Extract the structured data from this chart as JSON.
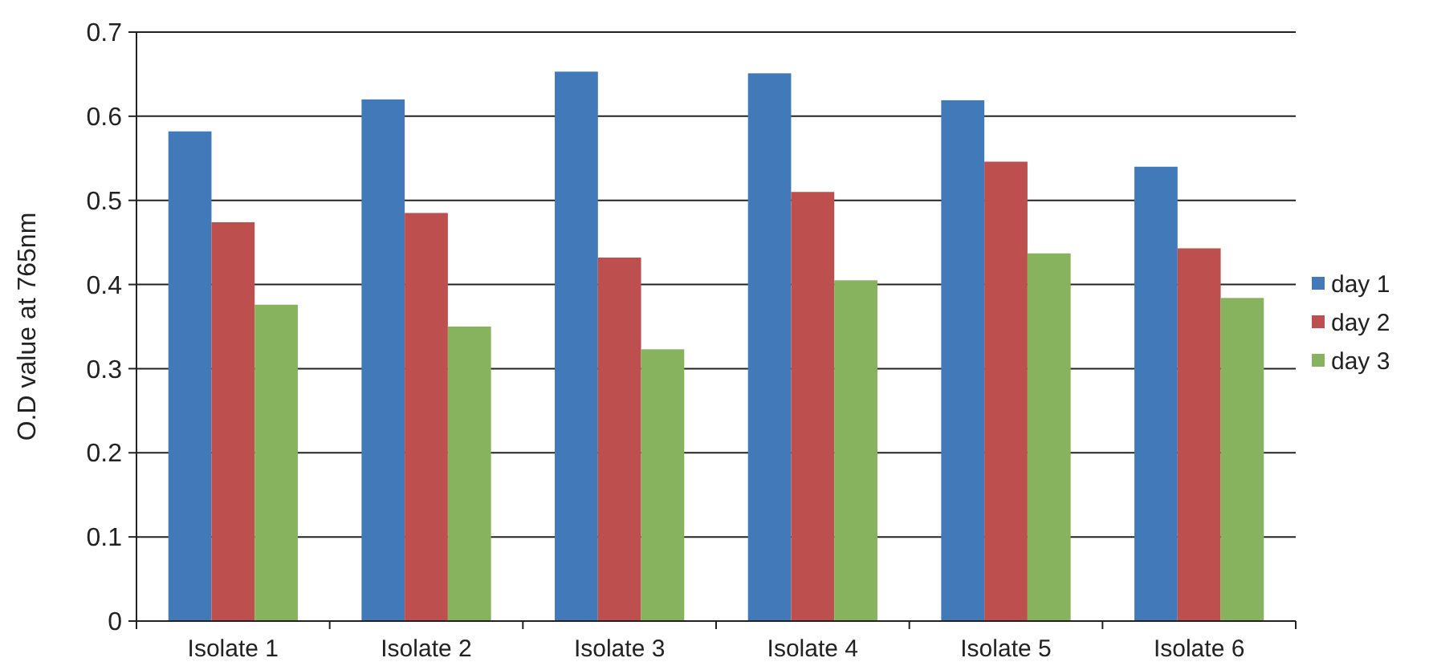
{
  "chart_data": {
    "type": "bar",
    "ylabel": "O.D value at 765nm",
    "categories": [
      "Isolate 1",
      "Isolate 2",
      "Isolate 3",
      "Isolate 4",
      "Isolate 5",
      "Isolate 6"
    ],
    "series": [
      {
        "name": "day 1",
        "color": "#4179b9",
        "values": [
          0.582,
          0.62,
          0.653,
          0.651,
          0.619,
          0.54
        ]
      },
      {
        "name": "day 2",
        "color": "#bd4f4e",
        "values": [
          0.474,
          0.485,
          0.432,
          0.51,
          0.546,
          0.443
        ]
      },
      {
        "name": "day 3",
        "color": "#88b35e",
        "values": [
          0.376,
          0.35,
          0.323,
          0.405,
          0.437,
          0.384
        ]
      }
    ],
    "ylim": [
      0,
      0.7
    ],
    "yticks": [
      0,
      0.1,
      0.2,
      0.3,
      0.4,
      0.5,
      0.6,
      0.7
    ],
    "grid": "y",
    "legend": "right"
  }
}
